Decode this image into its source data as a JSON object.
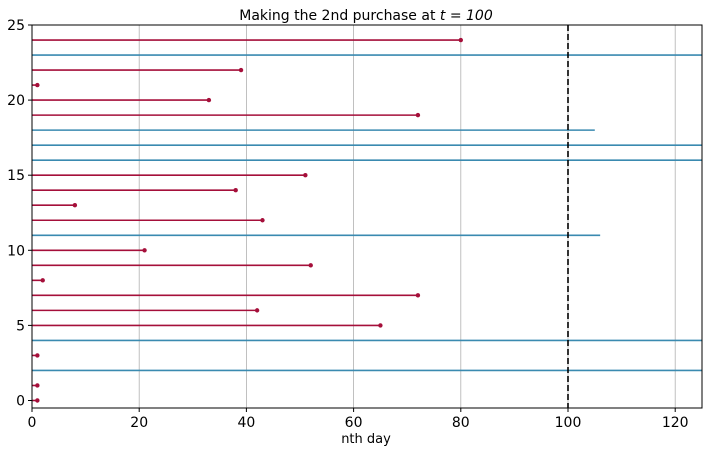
{
  "chart_data": {
    "type": "line",
    "title": "Making the 2nd purchase at ",
    "title_math": "t = 100",
    "xlabel": "nth day",
    "ylabel": "",
    "xlim": [
      0,
      125
    ],
    "ylim": [
      -0.5,
      25
    ],
    "x_ticks": [
      0,
      20,
      40,
      60,
      80,
      100,
      120
    ],
    "y_ticks": [
      0,
      5,
      10,
      15,
      20,
      25
    ],
    "grid": "x-only",
    "vline": 100,
    "colors": {
      "purchased": "#a50f3a",
      "not_purchased": "#3a8ab0"
    },
    "series": [
      {
        "values": [
          {
            "y": 0,
            "x": 1
          },
          {
            "y": 1,
            "x": 1
          },
          {
            "y": 3,
            "x": 1
          },
          {
            "y": 5,
            "x": 65
          },
          {
            "y": 6,
            "x": 42
          },
          {
            "y": 7,
            "x": 72
          },
          {
            "y": 8,
            "x": 2
          },
          {
            "y": 9,
            "x": 52
          },
          {
            "y": 10,
            "x": 21
          },
          {
            "y": 12,
            "x": 43
          },
          {
            "y": 13,
            "x": 8
          },
          {
            "y": 14,
            "x": 38
          },
          {
            "y": 15,
            "x": 51
          },
          {
            "y": 19,
            "x": 72
          },
          {
            "y": 20,
            "x": 33
          },
          {
            "y": 21,
            "x": 1
          },
          {
            "y": 22,
            "x": 39
          },
          {
            "y": 24,
            "x": 80
          }
        ]
      },
      {
        "values": [
          {
            "y": 2,
            "x": 125
          },
          {
            "y": 4,
            "x": 125
          },
          {
            "y": 11,
            "x": 106
          },
          {
            "y": 16,
            "x": 125
          },
          {
            "y": 17,
            "x": 125
          },
          {
            "y": 18,
            "x": 105
          },
          {
            "y": 23,
            "x": 125
          }
        ]
      }
    ]
  }
}
